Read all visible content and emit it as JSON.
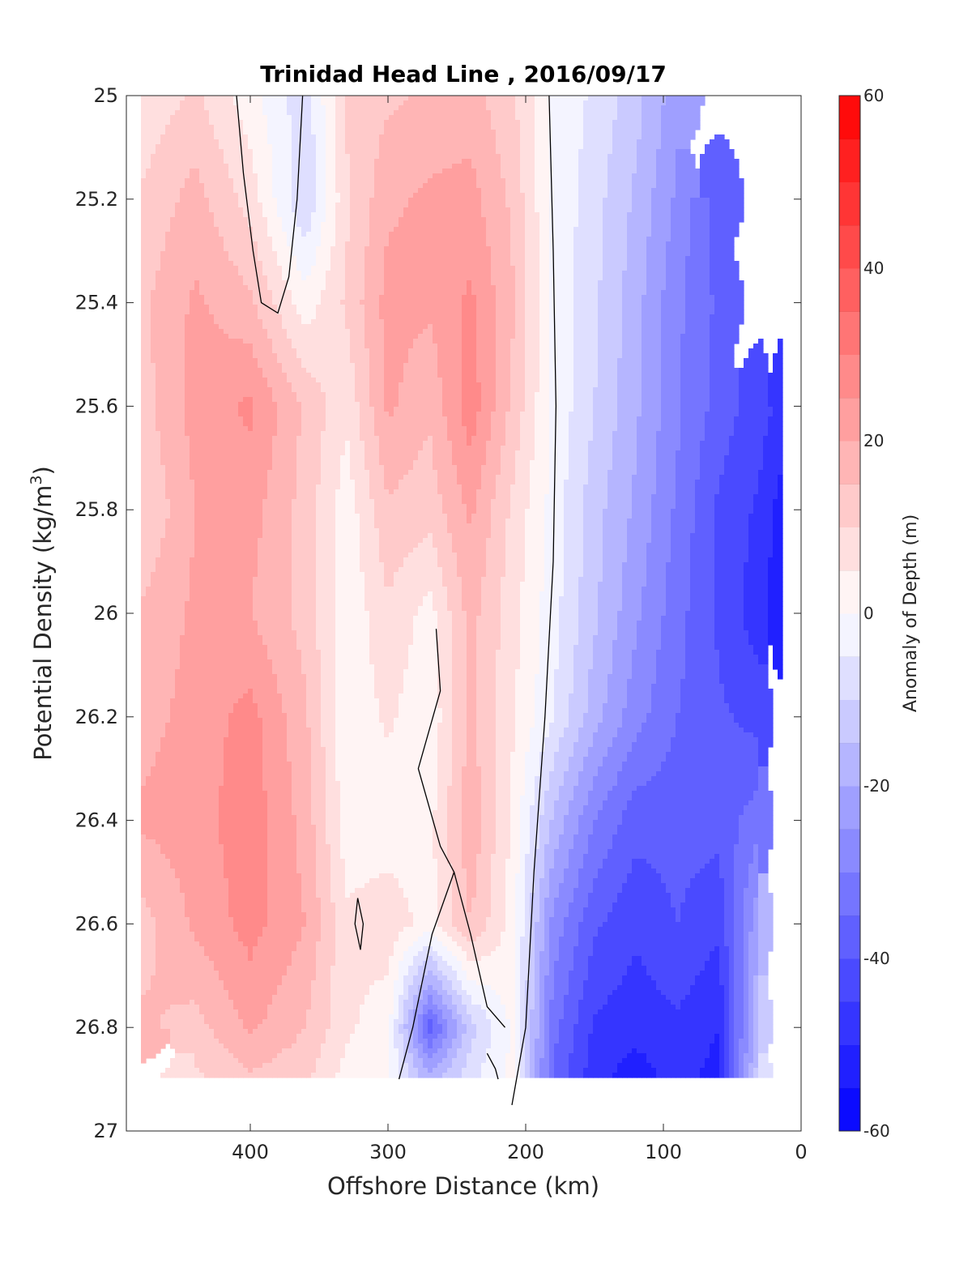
{
  "chart_data": {
    "type": "contourf",
    "title": "Trinidad Head Line , 2016/09/17",
    "xlabel": "Offshore Distance (km)",
    "ylabel_main": "Potential Density (kg/m",
    "ylabel_sup": "3",
    "ylabel_close": ")",
    "xlim": [
      490,
      0
    ],
    "ylim": [
      25,
      27
    ],
    "x_reversed": true,
    "y_reversed": true,
    "x_ticks": [
      400,
      300,
      200,
      100,
      0
    ],
    "x_tick_labels": [
      "400",
      "300",
      "200",
      "100",
      "0"
    ],
    "y_ticks": [
      25,
      25.2,
      25.4,
      25.6,
      25.8,
      26,
      26.2,
      26.4,
      26.6,
      26.8,
      27
    ],
    "y_tick_labels": [
      "25",
      "25.2",
      "25.4",
      "25.6",
      "25.8",
      "26",
      "26.2",
      "26.4",
      "26.6",
      "26.8",
      "27"
    ],
    "colorbar": {
      "label": "Anomaly of Depth (m)",
      "range": [
        -60,
        60
      ],
      "step": 5,
      "ticks": [
        60,
        40,
        20,
        0,
        -20,
        -40,
        -60
      ],
      "tick_labels": [
        "60",
        "40",
        "20",
        "0",
        "-20",
        "-40",
        "-60"
      ],
      "color_min": "#0000ff",
      "color_mid": "#ffffff",
      "color_max": "#ff0000"
    },
    "zero_contour_color": "#000000",
    "x": [
      478,
      440,
      400,
      360,
      330,
      300,
      270,
      240,
      210,
      180,
      150,
      120,
      90,
      60,
      30,
      15
    ],
    "y": [
      25.0,
      25.2,
      25.4,
      25.6,
      25.8,
      26.0,
      26.2,
      26.4,
      26.6,
      26.8,
      26.9
    ],
    "z": [
      [
        6,
        11,
        2,
        -8,
        11,
        14,
        16,
        17,
        11,
        -1,
        -6,
        -13,
        -23,
        null,
        null,
        null
      ],
      [
        11,
        17,
        8,
        -10,
        9,
        19,
        21,
        22,
        14,
        -1,
        -8,
        -16,
        -26,
        -38,
        null,
        null
      ],
      [
        14,
        21,
        16,
        2,
        11,
        22,
        21,
        26,
        16,
        -1,
        -9,
        -18,
        -29,
        -36,
        null,
        null
      ],
      [
        13,
        22,
        26,
        14,
        6,
        21,
        16,
        28,
        14,
        -1,
        -10,
        -19,
        -29,
        -37,
        -43,
        -46
      ],
      [
        10,
        20,
        22,
        13,
        2,
        14,
        12,
        21,
        9,
        -2,
        -13,
        -21,
        -31,
        -41,
        -46,
        -52
      ],
      [
        16,
        21,
        20,
        13,
        1,
        9,
        3,
        17,
        7,
        -3,
        -14,
        -24,
        -33,
        -41,
        -48,
        -54
      ],
      [
        18,
        22,
        27,
        16,
        1,
        6,
        1,
        16,
        6,
        -5,
        -18,
        -28,
        -35,
        -39,
        -42,
        null
      ],
      [
        21,
        23,
        28,
        18,
        2,
        2,
        3,
        19,
        4,
        -16,
        -30,
        -38,
        -38,
        -38,
        -32,
        null
      ],
      [
        13,
        21,
        27,
        20,
        6,
        8,
        3,
        15,
        3,
        -27,
        -39,
        -44,
        -40,
        -44,
        -20,
        null
      ],
      [
        16,
        13,
        21,
        15,
        6,
        2,
        -38,
        -12,
        1,
        -33,
        -46,
        -48,
        -46,
        -50,
        -14,
        null
      ],
      [
        null,
        9,
        14,
        11,
        3,
        0,
        -18,
        -6,
        1,
        -36,
        -48,
        -53,
        -48,
        -52,
        -10,
        null
      ]
    ],
    "zero_contours": [
      [
        [
          410,
          25.0
        ],
        [
          405,
          25.15
        ],
        [
          398,
          25.3
        ],
        [
          392,
          25.4
        ],
        [
          380,
          25.42
        ],
        [
          372,
          25.35
        ],
        [
          366,
          25.2
        ],
        [
          362,
          25.0
        ]
      ],
      [
        [
          183,
          25.0
        ],
        [
          180,
          25.3
        ],
        [
          178,
          25.6
        ],
        [
          180,
          25.9
        ],
        [
          186,
          26.2
        ],
        [
          194,
          26.5
        ],
        [
          200,
          26.8
        ],
        [
          210,
          26.95
        ]
      ],
      [
        [
          265,
          26.03
        ],
        [
          262,
          26.15
        ],
        [
          278,
          26.3
        ],
        [
          262,
          26.45
        ],
        [
          252,
          26.5
        ],
        [
          240,
          26.62
        ],
        [
          228,
          26.76
        ],
        [
          215,
          26.8
        ]
      ],
      [
        [
          252,
          26.5
        ],
        [
          268,
          26.62
        ],
        [
          282,
          26.8
        ],
        [
          292,
          26.9
        ]
      ],
      [
        [
          322,
          26.55
        ],
        [
          318,
          26.6
        ],
        [
          320,
          26.65
        ],
        [
          324,
          26.6
        ],
        [
          322,
          26.55
        ]
      ],
      [
        [
          228,
          26.85
        ],
        [
          222,
          26.88
        ],
        [
          220,
          26.9
        ]
      ]
    ]
  }
}
